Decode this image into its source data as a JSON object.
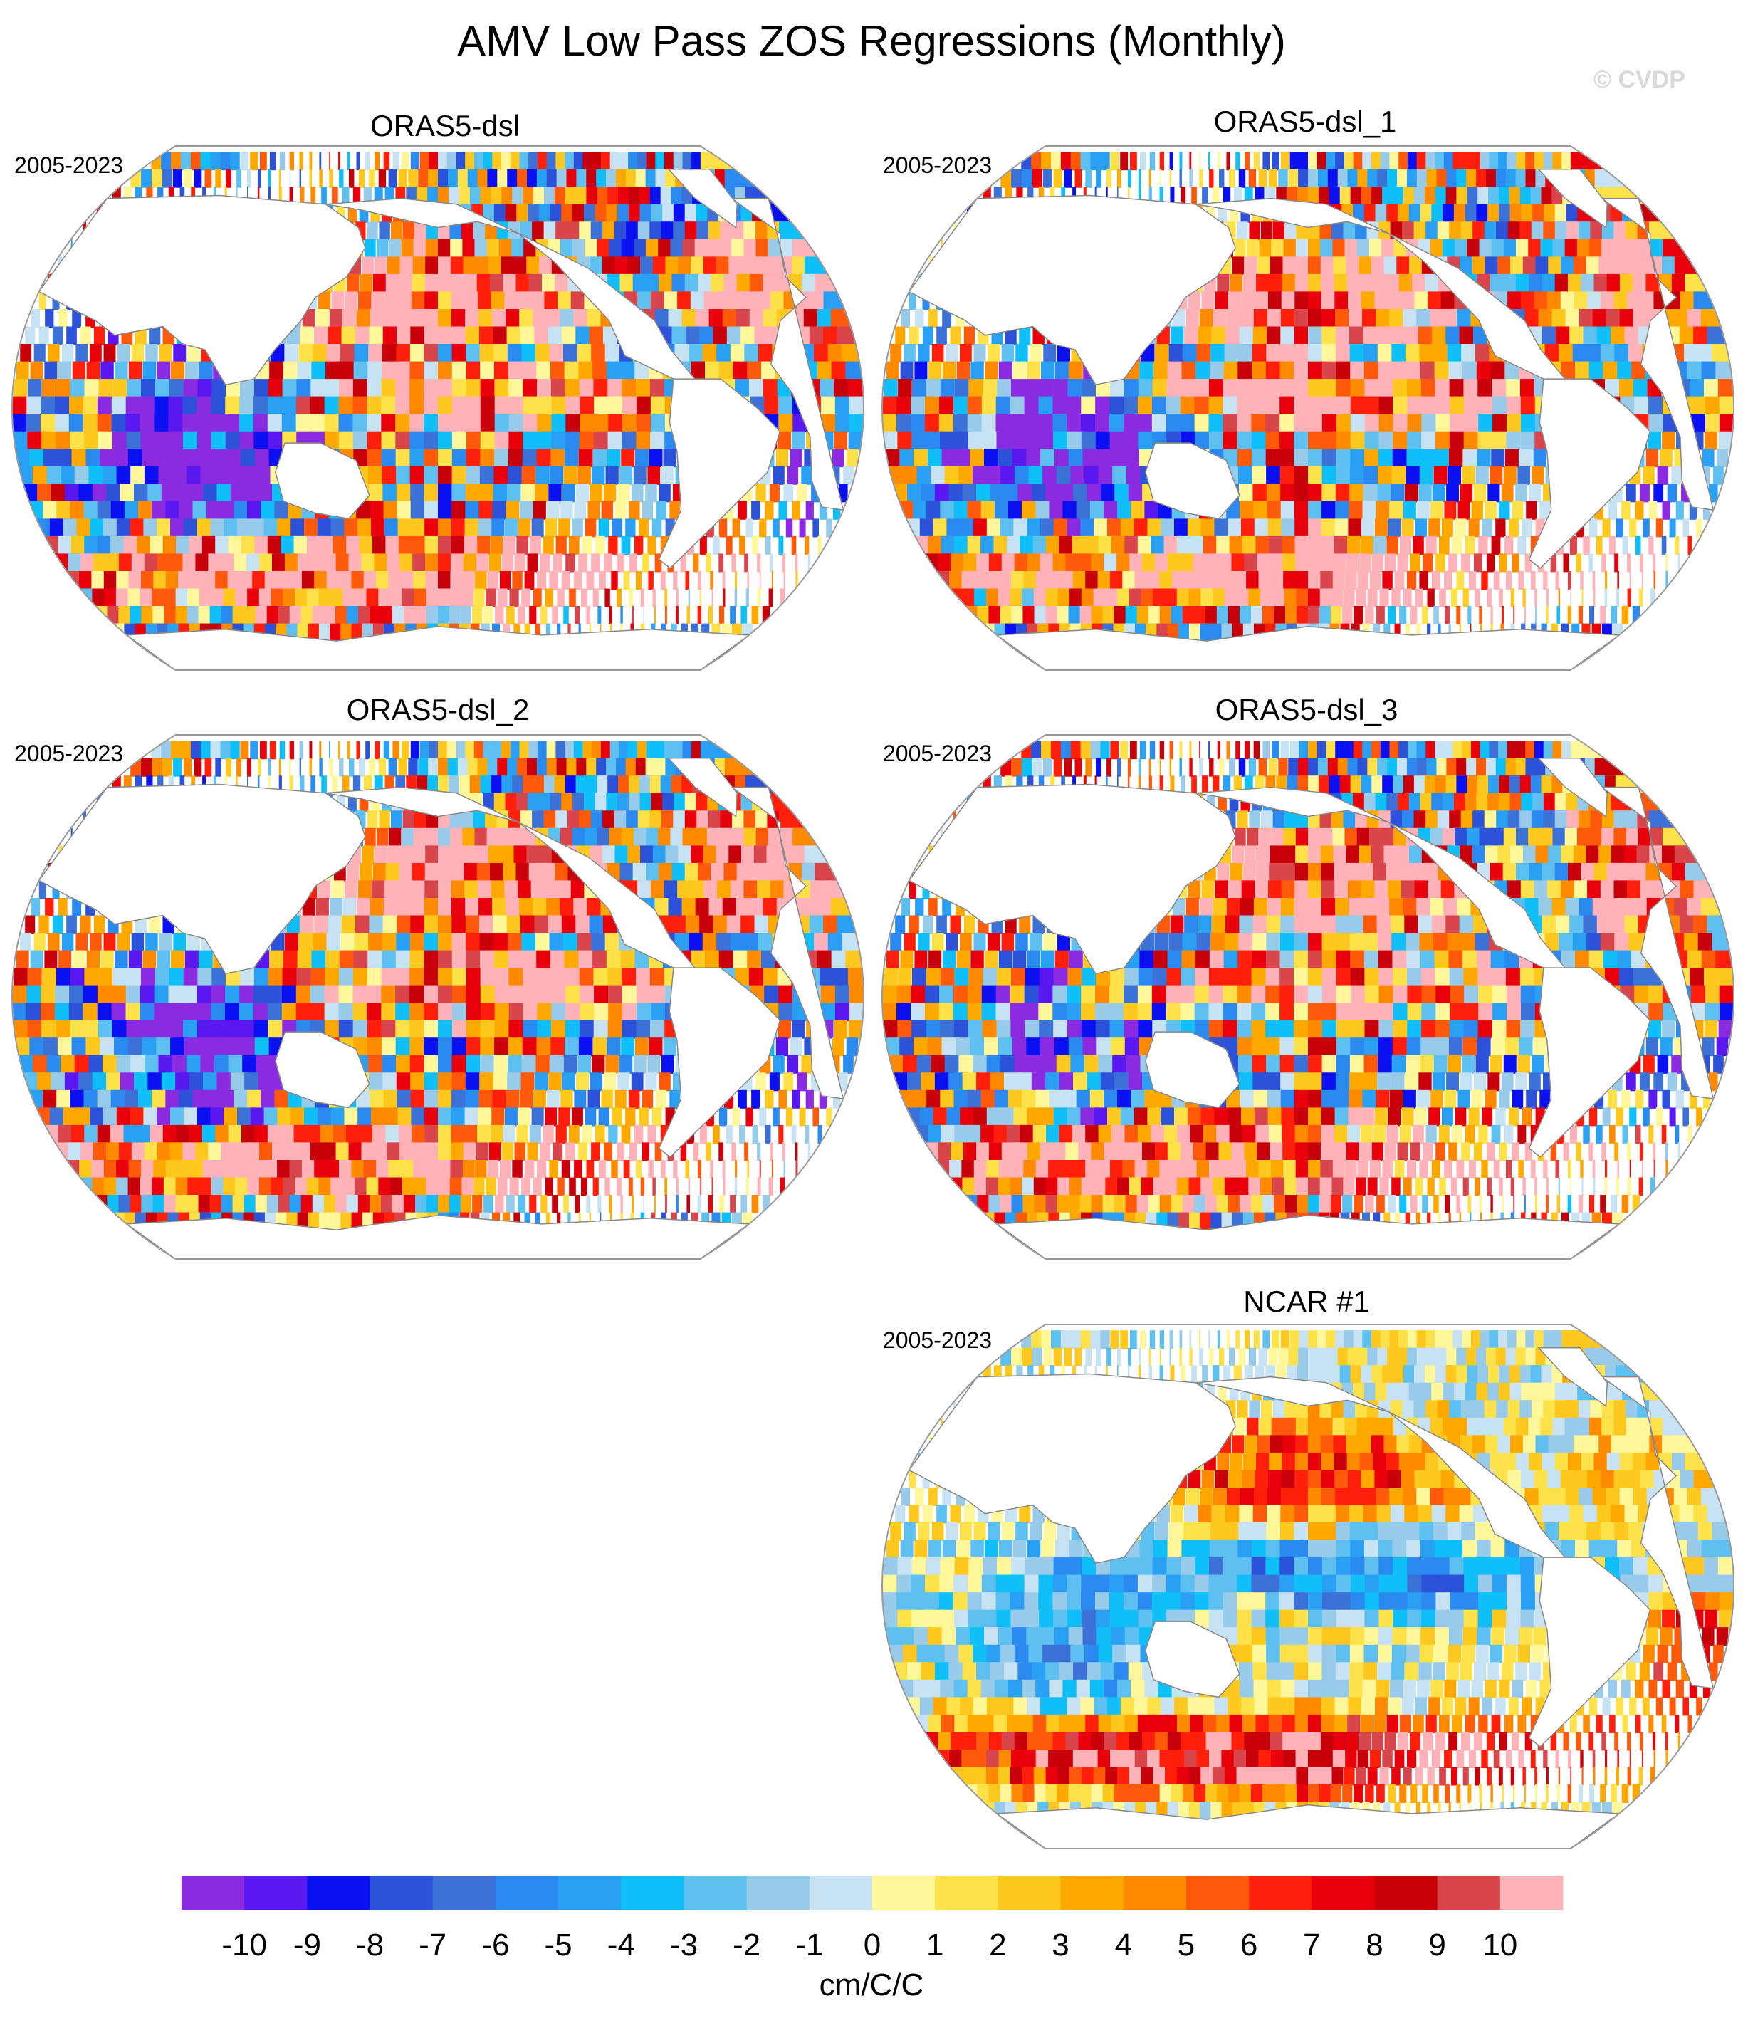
{
  "title": "AMV Low Pass ZOS Regressions (Monthly)",
  "credit": "© CVDP",
  "colors": {
    "ocean_edge": "#9a9a9a",
    "land": "#ffffff",
    "coast": "#888888"
  },
  "chart_data": {
    "type": "heatmap",
    "projection": "robinson",
    "variable": "ZOS",
    "panels": [
      {
        "title": "ORAS5-dsl",
        "period": "2005-2023",
        "pattern": {
          "north_pacific": 10,
          "tropical_pacific": 8,
          "southern_ocean": 10,
          "indian": -10,
          "north_atlantic": 10,
          "south_atlantic": -4,
          "noise": "high"
        }
      },
      {
        "title": "ORAS5-dsl_1",
        "period": "2005-2023",
        "pattern": {
          "north_pacific": 10,
          "tropical_pacific": 10,
          "southern_ocean": 10,
          "indian": -10,
          "north_atlantic": 10,
          "south_atlantic": -4,
          "noise": "high"
        }
      },
      {
        "title": "ORAS5-dsl_2",
        "period": "2005-2023",
        "pattern": {
          "north_pacific": 10,
          "tropical_pacific": 10,
          "southern_ocean": 10,
          "indian": -10,
          "north_atlantic": 10,
          "south_atlantic": -4,
          "noise": "high"
        }
      },
      {
        "title": "ORAS5-dsl_3",
        "period": "2005-2023",
        "pattern": {
          "north_pacific": 10,
          "tropical_pacific": 7,
          "southern_ocean": 10,
          "indian": -6,
          "north_atlantic": 10,
          "south_atlantic": -4,
          "noise": "high"
        }
      },
      {
        "title": "NCAR #1",
        "period": "2005-2023",
        "pattern": {
          "north_pacific": 6,
          "tropical_pacific": -5,
          "southern_ocean": 9,
          "indian": -4,
          "north_atlantic": 2,
          "south_atlantic": 7,
          "noise": "low"
        }
      }
    ],
    "colorbar": {
      "unit": "cm/C/C",
      "tick_labels": [
        "-10",
        "-9",
        "-8",
        "-7",
        "-6",
        "-5",
        "-4",
        "-3",
        "-2",
        "-1",
        "0",
        "1",
        "2",
        "3",
        "4",
        "5",
        "6",
        "7",
        "8",
        "9",
        "10"
      ],
      "colors": [
        "#8a2be2",
        "#5a18f0",
        "#0a10f0",
        "#2b52d8",
        "#3c72d8",
        "#2a8af0",
        "#2aa0f5",
        "#10bff8",
        "#5ec0f0",
        "#98cbea",
        "#c6e2f3",
        "#fff79a",
        "#ffe24a",
        "#ffc81e",
        "#ffa800",
        "#ff8a00",
        "#ff5a0a",
        "#ff1f0a",
        "#e8000a",
        "#c8000a",
        "#d8454a",
        "#ffb2b8"
      ]
    }
  }
}
